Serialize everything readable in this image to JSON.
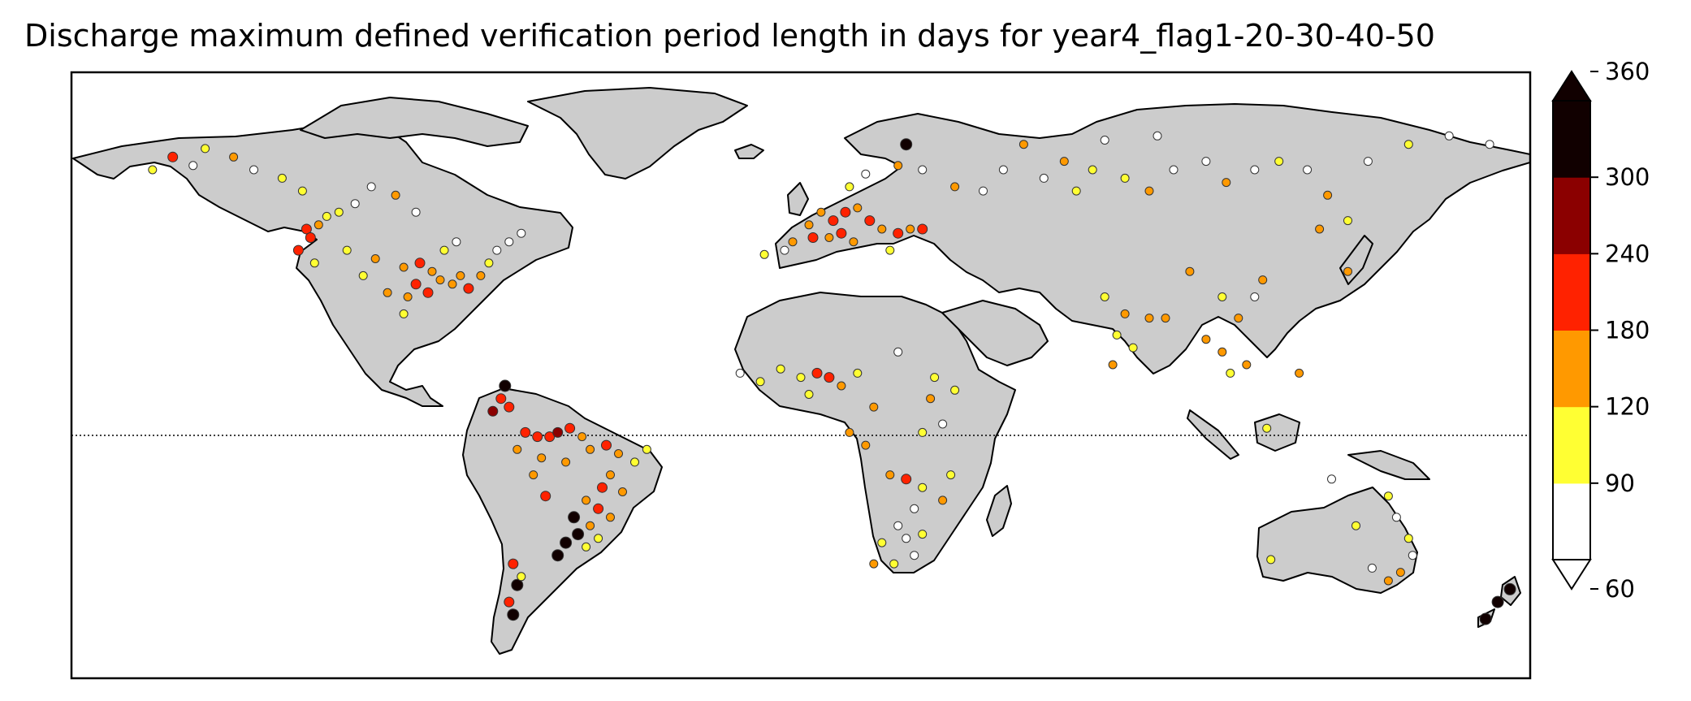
{
  "title": "Discharge maximum defined verification period length in days for year4_flag1-20-30-40-50",
  "map": {
    "land_color": "#cccccc",
    "ocean_color": "#ffffff",
    "coastline_color": "#000000",
    "equator_line": "dotted"
  },
  "colorbar": {
    "extend": "both",
    "bins": [
      {
        "from": 60,
        "to": 90,
        "color": "#ffffff"
      },
      {
        "from": 90,
        "to": 120,
        "color": "#ffff33"
      },
      {
        "from": 120,
        "to": 180,
        "color": "#ff9900"
      },
      {
        "from": 180,
        "to": 240,
        "color": "#ff2200"
      },
      {
        "from": 240,
        "to": 300,
        "color": "#8b0000"
      },
      {
        "from": 300,
        "to": 360,
        "color": "#110000"
      }
    ],
    "ticks": [
      "60",
      "90",
      "120",
      "180",
      "240",
      "300",
      "360"
    ]
  },
  "stations": [
    {
      "lon": -122,
      "lat": 46,
      "v": 200
    },
    {
      "lon": -121,
      "lat": 44,
      "v": 230
    },
    {
      "lon": -119,
      "lat": 47,
      "v": 150
    },
    {
      "lon": -117,
      "lat": 49,
      "v": 100
    },
    {
      "lon": -114,
      "lat": 50,
      "v": 100
    },
    {
      "lon": -110,
      "lat": 52,
      "v": 80
    },
    {
      "lon": -106,
      "lat": 56,
      "v": 80
    },
    {
      "lon": -100,
      "lat": 54,
      "v": 130
    },
    {
      "lon": -95,
      "lat": 50,
      "v": 80
    },
    {
      "lon": -124,
      "lat": 41,
      "v": 200
    },
    {
      "lon": -120,
      "lat": 38,
      "v": 100
    },
    {
      "lon": -112,
      "lat": 41,
      "v": 100
    },
    {
      "lon": -105,
      "lat": 39,
      "v": 130
    },
    {
      "lon": -98,
      "lat": 37,
      "v": 150
    },
    {
      "lon": -94,
      "lat": 38,
      "v": 200
    },
    {
      "lon": -91,
      "lat": 36,
      "v": 150
    },
    {
      "lon": -95,
      "lat": 33,
      "v": 180
    },
    {
      "lon": -92,
      "lat": 31,
      "v": 200
    },
    {
      "lon": -89,
      "lat": 34,
      "v": 150
    },
    {
      "lon": -86,
      "lat": 33,
      "v": 130
    },
    {
      "lon": -84,
      "lat": 35,
      "v": 130
    },
    {
      "lon": -82,
      "lat": 32,
      "v": 180
    },
    {
      "lon": -79,
      "lat": 35,
      "v": 150
    },
    {
      "lon": -77,
      "lat": 38,
      "v": 100
    },
    {
      "lon": -75,
      "lat": 41,
      "v": 80
    },
    {
      "lon": -72,
      "lat": 43,
      "v": 80
    },
    {
      "lon": -69,
      "lat": 45,
      "v": 80
    },
    {
      "lon": -88,
      "lat": 41,
      "v": 100
    },
    {
      "lon": -85,
      "lat": 43,
      "v": 80
    },
    {
      "lon": -97,
      "lat": 30,
      "v": 150
    },
    {
      "lon": -98,
      "lat": 26,
      "v": 100
    },
    {
      "lon": -102,
      "lat": 31,
      "v": 130
    },
    {
      "lon": -108,
      "lat": 35,
      "v": 100
    },
    {
      "lon": -150,
      "lat": 61,
      "v": 80
    },
    {
      "lon": -147,
      "lat": 65,
      "v": 100
    },
    {
      "lon": -140,
      "lat": 63,
      "v": 150
    },
    {
      "lon": -135,
      "lat": 60,
      "v": 80
    },
    {
      "lon": -128,
      "lat": 58,
      "v": 100
    },
    {
      "lon": -123,
      "lat": 55,
      "v": 100
    },
    {
      "lon": -160,
      "lat": 60,
      "v": 100
    },
    {
      "lon": -155,
      "lat": 63,
      "v": 200
    },
    {
      "lon": -76,
      "lat": 3,
      "v": 260
    },
    {
      "lon": -74,
      "lat": 6,
      "v": 230
    },
    {
      "lon": -73,
      "lat": 9,
      "v": 300
    },
    {
      "lon": -72,
      "lat": 4,
      "v": 180
    },
    {
      "lon": -68,
      "lat": -2,
      "v": 200
    },
    {
      "lon": -65,
      "lat": -3,
      "v": 230
    },
    {
      "lon": -62,
      "lat": -3,
      "v": 200
    },
    {
      "lon": -60,
      "lat": -2,
      "v": 260
    },
    {
      "lon": -57,
      "lat": -1,
      "v": 200
    },
    {
      "lon": -54,
      "lat": -3,
      "v": 150
    },
    {
      "lon": -70,
      "lat": -6,
      "v": 150
    },
    {
      "lon": -64,
      "lat": -8,
      "v": 150
    },
    {
      "lon": -58,
      "lat": -9,
      "v": 150
    },
    {
      "lon": -52,
      "lat": -6,
      "v": 150
    },
    {
      "lon": -48,
      "lat": -5,
      "v": 200
    },
    {
      "lon": -45,
      "lat": -7,
      "v": 150
    },
    {
      "lon": -41,
      "lat": -9,
      "v": 100
    },
    {
      "lon": -38,
      "lat": -6,
      "v": 100
    },
    {
      "lon": -47,
      "lat": -12,
      "v": 150
    },
    {
      "lon": -44,
      "lat": -16,
      "v": 150
    },
    {
      "lon": -49,
      "lat": -15,
      "v": 200
    },
    {
      "lon": -53,
      "lat": -18,
      "v": 150
    },
    {
      "lon": -50,
      "lat": -20,
      "v": 230
    },
    {
      "lon": -47,
      "lat": -22,
      "v": 150
    },
    {
      "lon": -52,
      "lat": -24,
      "v": 150
    },
    {
      "lon": -56,
      "lat": -22,
      "v": 320
    },
    {
      "lon": -55,
      "lat": -26,
      "v": 330
    },
    {
      "lon": -58,
      "lat": -28,
      "v": 320
    },
    {
      "lon": -60,
      "lat": -31,
      "v": 340
    },
    {
      "lon": -53,
      "lat": -29,
      "v": 100
    },
    {
      "lon": -50,
      "lat": -27,
      "v": 100
    },
    {
      "lon": -66,
      "lat": -12,
      "v": 150
    },
    {
      "lon": -63,
      "lat": -17,
      "v": 200
    },
    {
      "lon": -70,
      "lat": -38,
      "v": 300
    },
    {
      "lon": -72,
      "lat": -42,
      "v": 200
    },
    {
      "lon": -71,
      "lat": -45,
      "v": 320
    },
    {
      "lon": -69,
      "lat": -36,
      "v": 100
    },
    {
      "lon": -71,
      "lat": -33,
      "v": 180
    },
    {
      "lon": -9,
      "lat": 40,
      "v": 100
    },
    {
      "lon": -4,
      "lat": 41,
      "v": 80
    },
    {
      "lon": -2,
      "lat": 43,
      "v": 130
    },
    {
      "lon": 2,
      "lat": 47,
      "v": 150
    },
    {
      "lon": 5,
      "lat": 50,
      "v": 150
    },
    {
      "lon": 8,
      "lat": 48,
      "v": 200
    },
    {
      "lon": 11,
      "lat": 50,
      "v": 180
    },
    {
      "lon": 14,
      "lat": 51,
      "v": 150
    },
    {
      "lon": 17,
      "lat": 48,
      "v": 200
    },
    {
      "lon": 20,
      "lat": 46,
      "v": 150
    },
    {
      "lon": 24,
      "lat": 45,
      "v": 180
    },
    {
      "lon": 27,
      "lat": 46,
      "v": 150
    },
    {
      "lon": 30,
      "lat": 46,
      "v": 200
    },
    {
      "lon": 10,
      "lat": 45,
      "v": 230
    },
    {
      "lon": 7,
      "lat": 44,
      "v": 150
    },
    {
      "lon": 13,
      "lat": 43,
      "v": 130
    },
    {
      "lon": 22,
      "lat": 41,
      "v": 100
    },
    {
      "lon": 3,
      "lat": 44,
      "v": 200
    },
    {
      "lon": 12,
      "lat": 56,
      "v": 100
    },
    {
      "lon": 16,
      "lat": 59,
      "v": 80
    },
    {
      "lon": 24,
      "lat": 61,
      "v": 150
    },
    {
      "lon": 26,
      "lat": 66,
      "v": 300
    },
    {
      "lon": 30,
      "lat": 60,
      "v": 80
    },
    {
      "lon": 38,
      "lat": 56,
      "v": 130
    },
    {
      "lon": 45,
      "lat": 55,
      "v": 80
    },
    {
      "lon": 50,
      "lat": 60,
      "v": 80
    },
    {
      "lon": 60,
      "lat": 58,
      "v": 80
    },
    {
      "lon": 65,
      "lat": 62,
      "v": 150
    },
    {
      "lon": 72,
      "lat": 60,
      "v": 100
    },
    {
      "lon": 80,
      "lat": 58,
      "v": 100
    },
    {
      "lon": 86,
      "lat": 55,
      "v": 130
    },
    {
      "lon": 92,
      "lat": 60,
      "v": 80
    },
    {
      "lon": 100,
      "lat": 62,
      "v": 80
    },
    {
      "lon": 105,
      "lat": 57,
      "v": 150
    },
    {
      "lon": 112,
      "lat": 60,
      "v": 80
    },
    {
      "lon": 118,
      "lat": 62,
      "v": 100
    },
    {
      "lon": 125,
      "lat": 60,
      "v": 80
    },
    {
      "lon": 130,
      "lat": 54,
      "v": 150
    },
    {
      "lon": 135,
      "lat": 48,
      "v": 100
    },
    {
      "lon": 140,
      "lat": 62,
      "v": 80
    },
    {
      "lon": 150,
      "lat": 66,
      "v": 100
    },
    {
      "lon": 160,
      "lat": 68,
      "v": 80
    },
    {
      "lon": 170,
      "lat": 66,
      "v": 80
    },
    {
      "lon": 75,
      "lat": 67,
      "v": 80
    },
    {
      "lon": 88,
      "lat": 68,
      "v": 80
    },
    {
      "lon": 55,
      "lat": 66,
      "v": 150
    },
    {
      "lon": 68,
      "lat": 55,
      "v": 100
    },
    {
      "lon": 128,
      "lat": 46,
      "v": 130
    },
    {
      "lon": 135,
      "lat": 36,
      "v": 130
    },
    {
      "lon": 75,
      "lat": 30,
      "v": 100
    },
    {
      "lon": 80,
      "lat": 26,
      "v": 150
    },
    {
      "lon": 86,
      "lat": 25,
      "v": 130
    },
    {
      "lon": 90,
      "lat": 25,
      "v": 150
    },
    {
      "lon": 78,
      "lat": 21,
      "v": 100
    },
    {
      "lon": 82,
      "lat": 18,
      "v": 100
    },
    {
      "lon": 77,
      "lat": 14,
      "v": 130
    },
    {
      "lon": 100,
      "lat": 20,
      "v": 150
    },
    {
      "lon": 104,
      "lat": 17,
      "v": 130
    },
    {
      "lon": 106,
      "lat": 12,
      "v": 100
    },
    {
      "lon": 108,
      "lat": 25,
      "v": 150
    },
    {
      "lon": 112,
      "lat": 30,
      "v": 80
    },
    {
      "lon": 114,
      "lat": 34,
      "v": 150
    },
    {
      "lon": 104,
      "lat": 30,
      "v": 100
    },
    {
      "lon": 96,
      "lat": 36,
      "v": 150
    },
    {
      "lon": 110,
      "lat": 14,
      "v": 150
    },
    {
      "lon": 123,
      "lat": 12,
      "v": 150
    },
    {
      "lon": 115,
      "lat": -1,
      "v": 100
    },
    {
      "lon": -15,
      "lat": 12,
      "v": 80
    },
    {
      "lon": -10,
      "lat": 10,
      "v": 100
    },
    {
      "lon": -5,
      "lat": 13,
      "v": 100
    },
    {
      "lon": 0,
      "lat": 11,
      "v": 100
    },
    {
      "lon": 4,
      "lat": 12,
      "v": 180
    },
    {
      "lon": 7,
      "lat": 11,
      "v": 200
    },
    {
      "lon": 10,
      "lat": 9,
      "v": 150
    },
    {
      "lon": 2,
      "lat": 7,
      "v": 100
    },
    {
      "lon": 14,
      "lat": 12,
      "v": 100
    },
    {
      "lon": 24,
      "lat": 17,
      "v": 80
    },
    {
      "lon": 18,
      "lat": 4,
      "v": 130
    },
    {
      "lon": 12,
      "lat": -2,
      "v": 150
    },
    {
      "lon": 16,
      "lat": -5,
      "v": 150
    },
    {
      "lon": 30,
      "lat": -2,
      "v": 100
    },
    {
      "lon": 35,
      "lat": 0,
      "v": 80
    },
    {
      "lon": 38,
      "lat": 8,
      "v": 100
    },
    {
      "lon": 32,
      "lat": 6,
      "v": 130
    },
    {
      "lon": 33,
      "lat": 11,
      "v": 100
    },
    {
      "lon": 22,
      "lat": -12,
      "v": 150
    },
    {
      "lon": 26,
      "lat": -13,
      "v": 180
    },
    {
      "lon": 30,
      "lat": -15,
      "v": 100
    },
    {
      "lon": 28,
      "lat": -20,
      "v": 80
    },
    {
      "lon": 24,
      "lat": -24,
      "v": 80
    },
    {
      "lon": 20,
      "lat": -28,
      "v": 100
    },
    {
      "lon": 26,
      "lat": -27,
      "v": 80
    },
    {
      "lon": 30,
      "lat": -26,
      "v": 100
    },
    {
      "lon": 18,
      "lat": -33,
      "v": 130
    },
    {
      "lon": 23,
      "lat": -33,
      "v": 100
    },
    {
      "lon": 28,
      "lat": -31,
      "v": 80
    },
    {
      "lon": 35,
      "lat": -18,
      "v": 150
    },
    {
      "lon": 37,
      "lat": -12,
      "v": 100
    },
    {
      "lon": 145,
      "lat": -17,
      "v": 100
    },
    {
      "lon": 147,
      "lat": -22,
      "v": 80
    },
    {
      "lon": 150,
      "lat": -27,
      "v": 100
    },
    {
      "lon": 151,
      "lat": -31,
      "v": 80
    },
    {
      "lon": 148,
      "lat": -35,
      "v": 130
    },
    {
      "lon": 145,
      "lat": -37,
      "v": 150
    },
    {
      "lon": 141,
      "lat": -34,
      "v": 80
    },
    {
      "lon": 116,
      "lat": -32,
      "v": 100
    },
    {
      "lon": 131,
      "lat": -13,
      "v": 80
    },
    {
      "lon": 137,
      "lat": -24,
      "v": 100
    },
    {
      "lon": 172,
      "lat": -42,
      "v": 300
    },
    {
      "lon": 175,
      "lat": -39,
      "v": 300
    },
    {
      "lon": 169,
      "lat": -46,
      "v": 320
    }
  ]
}
